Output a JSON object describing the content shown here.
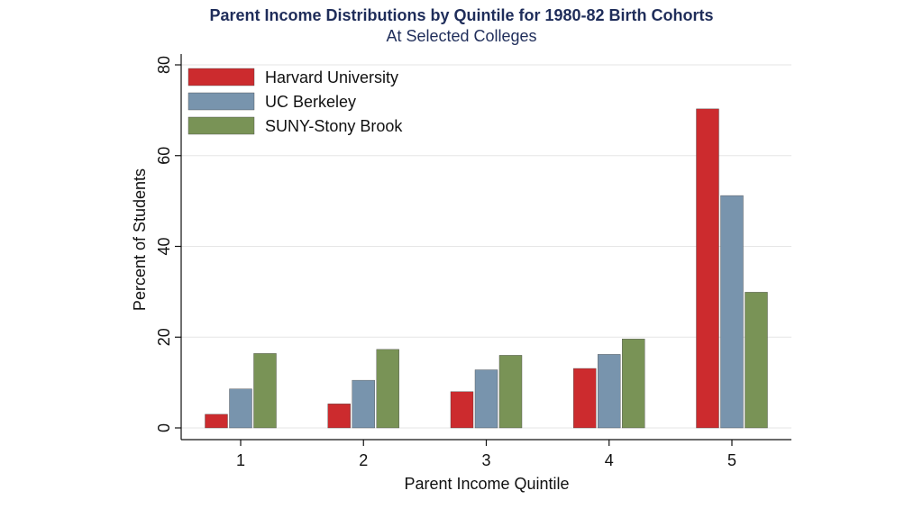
{
  "chart_data": {
    "type": "bar",
    "title": "Parent Income Distributions by Quintile for 1980-82 Birth Cohorts",
    "subtitle": "At Selected Colleges",
    "xlabel": "Parent Income Quintile",
    "ylabel": "Percent of Students",
    "categories": [
      "1",
      "2",
      "3",
      "4",
      "5"
    ],
    "ylim": [
      0,
      80
    ],
    "yticks": [
      "0",
      "20",
      "40",
      "60",
      "80"
    ],
    "grid": true,
    "legend_position": "top-left",
    "series": [
      {
        "name": "Harvard University",
        "color": "#cc2b2e",
        "values": [
          3.0,
          5.3,
          8.0,
          13.1,
          70.3
        ]
      },
      {
        "name": "UC Berkeley",
        "color": "#7894ad",
        "values": [
          8.6,
          10.5,
          12.8,
          16.2,
          51.2
        ]
      },
      {
        "name": "SUNY-Stony Brook",
        "color": "#799356",
        "values": [
          16.4,
          17.3,
          16.0,
          19.6,
          29.9
        ]
      }
    ]
  }
}
